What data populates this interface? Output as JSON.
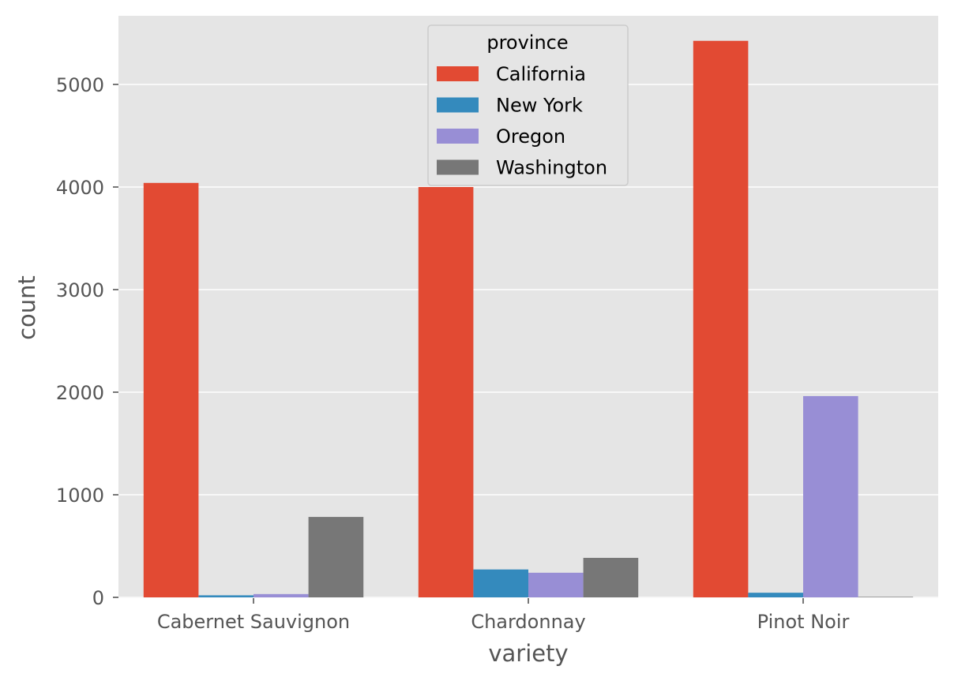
{
  "chart_data": {
    "type": "bar",
    "xlabel": "variety",
    "ylabel": "count",
    "categories": [
      "Cabernet Sauvignon",
      "Chardonnay",
      "Pinot Noir"
    ],
    "series": [
      {
        "name": "California",
        "color": "#E24A33",
        "values": [
          4040,
          4000,
          5425
        ]
      },
      {
        "name": "New York",
        "color": "#348ABD",
        "values": [
          20,
          272,
          45
        ]
      },
      {
        "name": "Oregon",
        "color": "#988ED5",
        "values": [
          32,
          240,
          1962
        ]
      },
      {
        "name": "Washington",
        "color": "#777777",
        "values": [
          784,
          385,
          5
        ]
      }
    ],
    "ylim": [
      0,
      5700
    ],
    "yticks": [
      0,
      1000,
      2000,
      3000,
      4000,
      5000
    ],
    "grid": true,
    "style": "ggplot",
    "legend": {
      "title": "province",
      "placement": "top-center"
    }
  }
}
